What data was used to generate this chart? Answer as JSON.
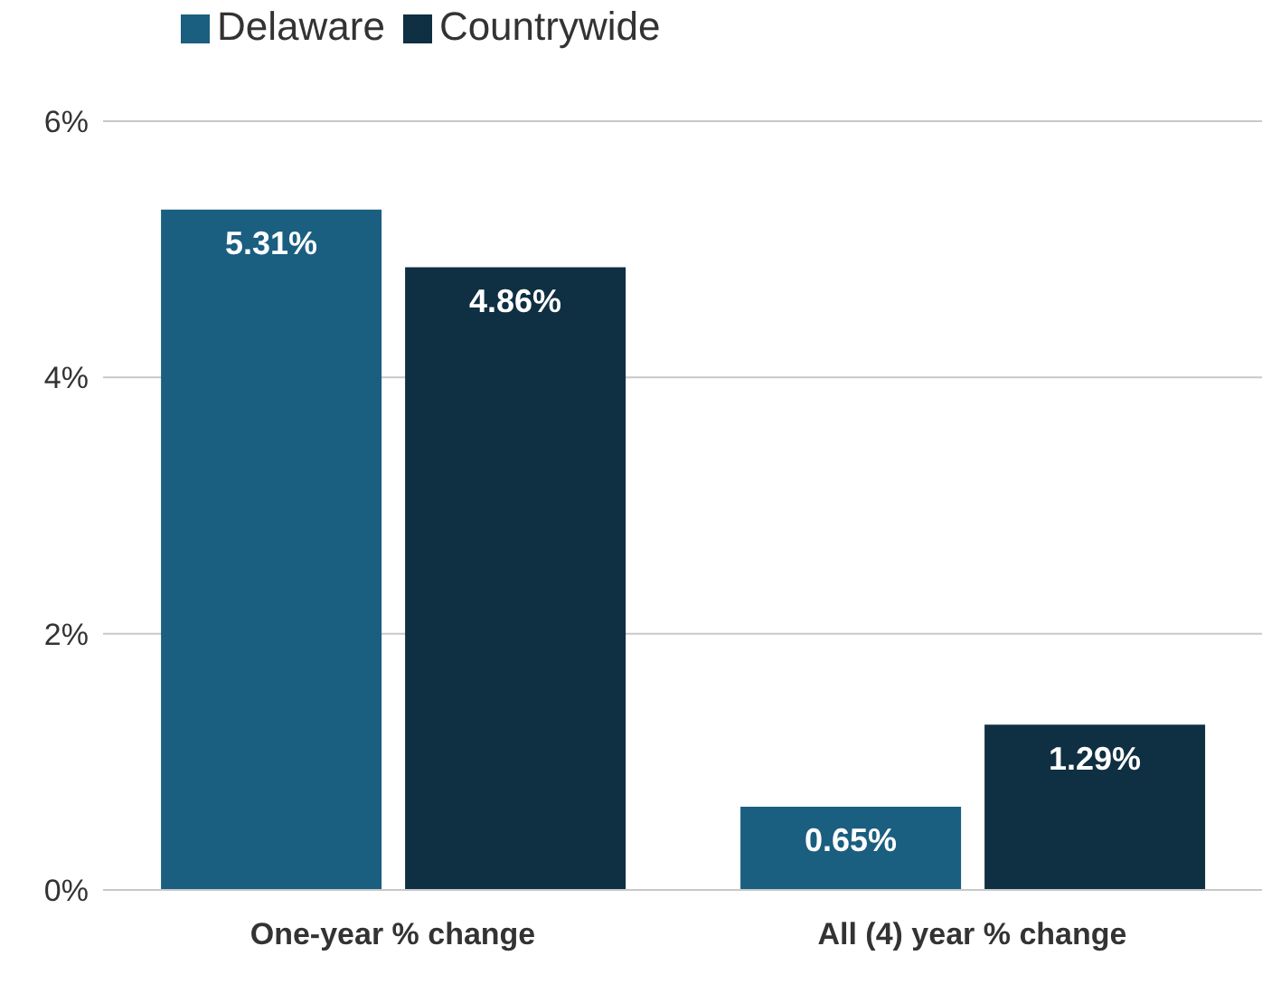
{
  "chart_data": {
    "type": "bar",
    "categories": [
      "One-year % change",
      "All (4) year % change"
    ],
    "series": [
      {
        "name": "Delaware",
        "color": "#1a5e80",
        "values": [
          5.31,
          0.65
        ],
        "value_labels": [
          "5.31%",
          "0.65%"
        ]
      },
      {
        "name": "Countrywide",
        "color": "#0f2f42",
        "values": [
          4.86,
          1.29
        ],
        "value_labels": [
          "4.86%",
          "1.29%"
        ]
      }
    ],
    "ylim": [
      0,
      6
    ],
    "yticks": [
      {
        "value": 0,
        "label": "0%"
      },
      {
        "value": 2,
        "label": "2%"
      },
      {
        "value": 4,
        "label": "4%"
      },
      {
        "value": 6,
        "label": "6%"
      }
    ],
    "grid": "y",
    "legend": "top left"
  }
}
